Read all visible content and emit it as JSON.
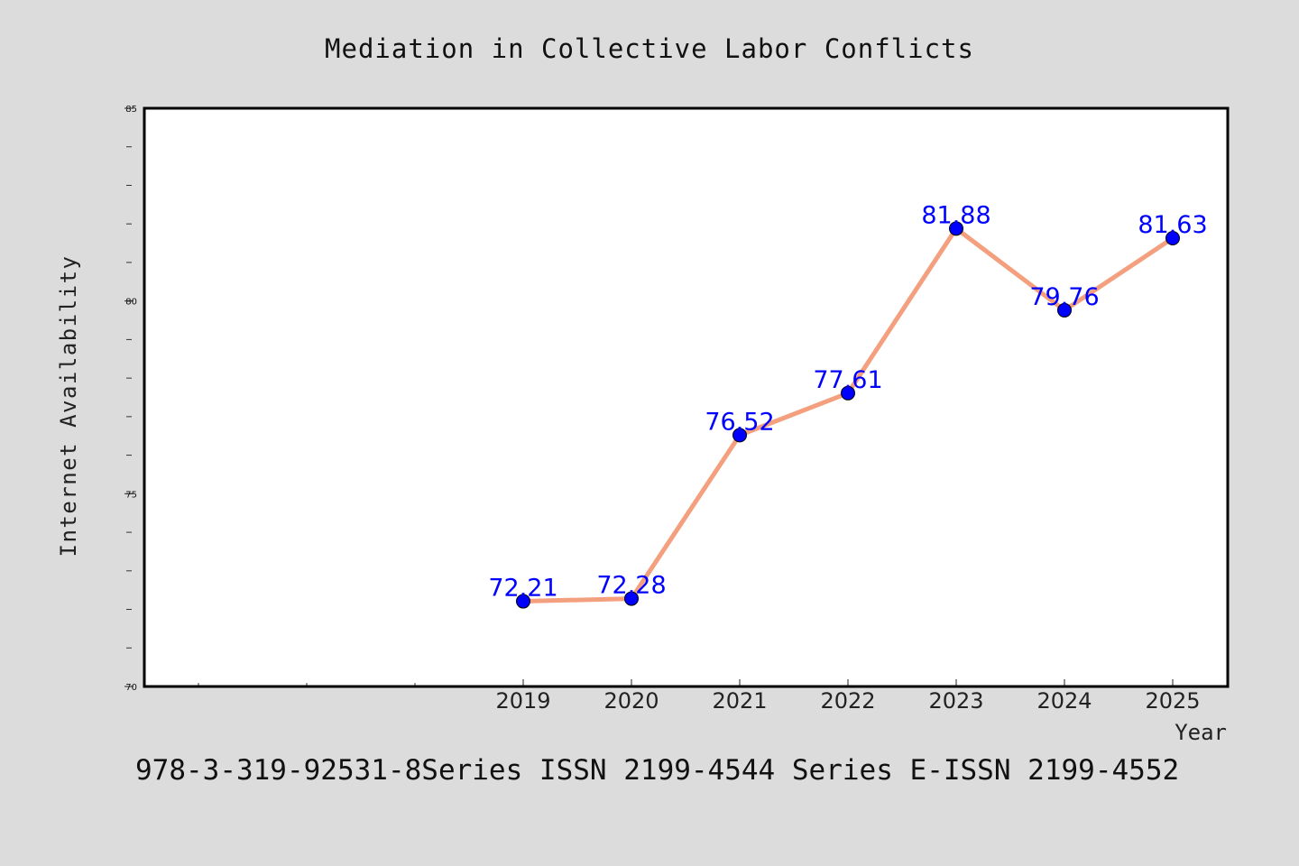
{
  "chart_data": {
    "type": "line",
    "title": "Mediation in Collective Labor Conflicts",
    "xlabel": "Year",
    "ylabel": "Internet Availability",
    "categories": [
      "2019",
      "2020",
      "2021",
      "2022",
      "2023",
      "2024",
      "2025"
    ],
    "series": [
      {
        "values": [
          72.21,
          72.28,
          76.52,
          77.61,
          81.88,
          79.76,
          81.63
        ],
        "labels": [
          "72.21",
          "72.28",
          "76.52",
          "77.61",
          "81.88",
          "79.76",
          "81.63"
        ],
        "line_color": "#f4a07e",
        "marker_color": "#0000ff"
      }
    ],
    "ylim": [
      70,
      85
    ],
    "yticks": [
      "70",
      "75",
      "80",
      "85"
    ],
    "grid": false,
    "legend": "none"
  },
  "footer": {
    "text": "978-3-319-92531-8Series ISSN 2199-4544 Series E-ISSN 2199-4552"
  },
  "colors": {
    "background": "#dcdcdc",
    "plot_background": "#ffffff",
    "data_label": "#0000ff"
  }
}
